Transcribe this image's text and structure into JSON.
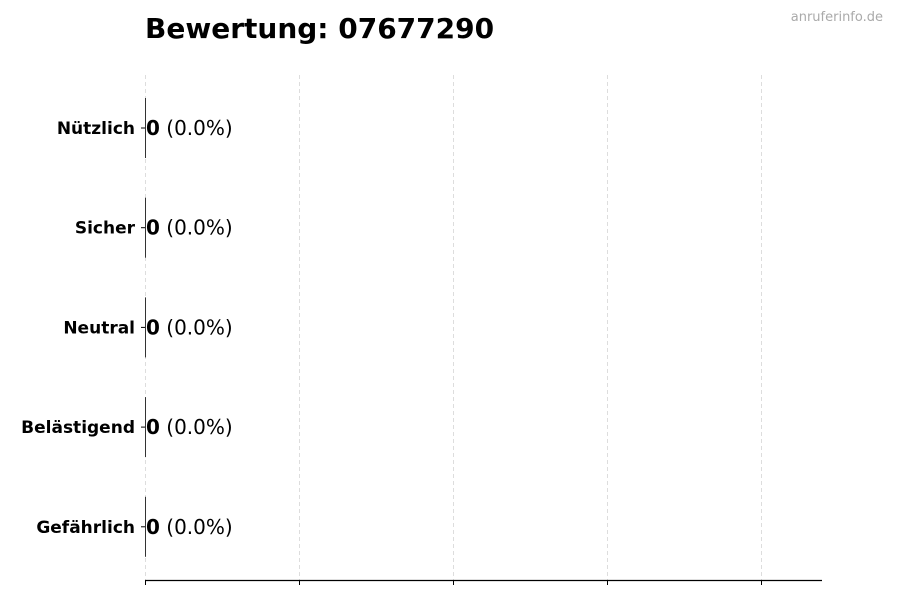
{
  "chart_data": {
    "type": "bar",
    "orientation": "horizontal",
    "title": "Bewertung: 07677290",
    "watermark": "anruferinfo.de",
    "categories": [
      "Nützlich",
      "Sicher",
      "Neutral",
      "Belästigend",
      "Gefährlich"
    ],
    "values": [
      0,
      0,
      0,
      0,
      0
    ],
    "data_labels": [
      {
        "count": "0",
        "percent": "(0.0%)"
      },
      {
        "count": "0",
        "percent": "(0.0%)"
      },
      {
        "count": "0",
        "percent": "(0.0%)"
      },
      {
        "count": "0",
        "percent": "(0.0%)"
      },
      {
        "count": "0",
        "percent": "(0.0%)"
      }
    ],
    "xlabel": "",
    "ylabel": "",
    "grid": "vertical dashed",
    "x_tick_count": 5,
    "colors": {
      "grid": "#dddddd",
      "axis": "#000000",
      "watermark": "#aaaaaa"
    }
  }
}
